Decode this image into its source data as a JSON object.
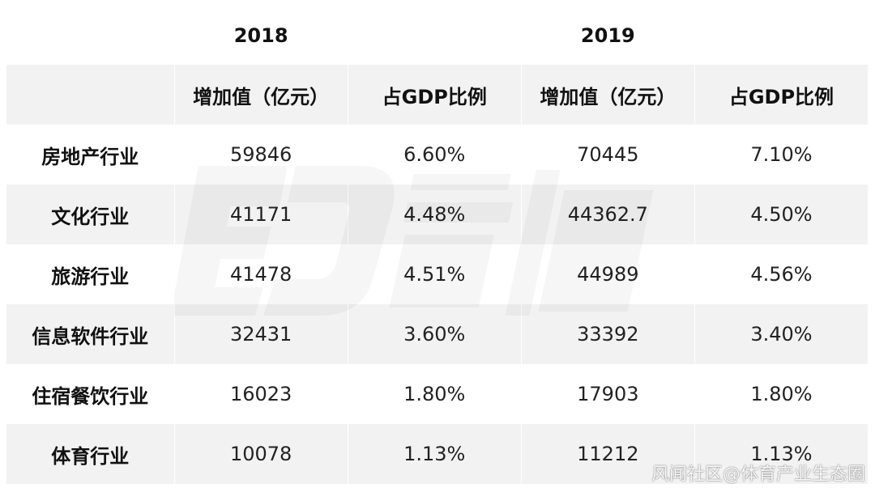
{
  "years": [
    "2018",
    "2019"
  ],
  "sub_headers": [
    "增加值（亿元）",
    "占GDP比例",
    "增加值（亿元）",
    "占GDP比例"
  ],
  "rows": [
    {
      "label": "房地产行业",
      "values": [
        "59846",
        "6.60%",
        "70445",
        "7.10%"
      ]
    },
    {
      "label": "文化行业",
      "values": [
        "41171",
        "4.48%",
        "44362.7",
        "4.50%"
      ]
    },
    {
      "label": "旅游行业",
      "values": [
        "41478",
        "4.51%",
        "44989",
        "4.56%"
      ]
    },
    {
      "label": "信息软件行业",
      "values": [
        "32431",
        "3.60%",
        "33392",
        "3.40%"
      ]
    },
    {
      "label": "住宿餐饮行业",
      "values": [
        "16023",
        "1.80%",
        "17903",
        "1.80%"
      ]
    },
    {
      "label": "体育行业",
      "values": [
        "10078",
        "1.13%",
        "11212",
        "1.13%"
      ]
    }
  ],
  "watermark": {
    "credit_text": "风闻社区@体育产业生态圈"
  },
  "colors": {
    "shade": "#f2f2f2",
    "text": "#1a1a1a"
  }
}
